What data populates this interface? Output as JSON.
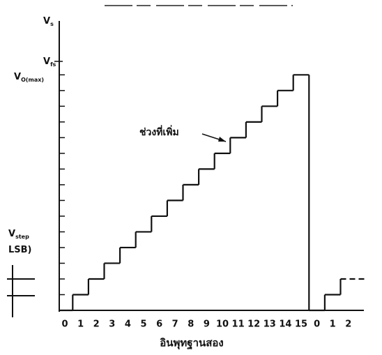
{
  "chart_data": {
    "type": "step",
    "x_label": "อินพุทฐานสอง",
    "annotation": "ช่วงที่เพิ่ม",
    "y_labels": [
      {
        "main": "V",
        "sub": "s"
      },
      {
        "main": "V",
        "sub": "fs"
      },
      {
        "main": "V",
        "sub": "O(max)"
      },
      {
        "main": "V",
        "sub": "step"
      },
      {
        "main": "LSB)",
        "sub": ""
      }
    ],
    "categories": [
      "0",
      "1",
      "2",
      "3",
      "4",
      "5",
      "6",
      "7",
      "8",
      "9",
      "10",
      "11",
      "12",
      "13",
      "14",
      "15",
      "0",
      "1",
      "2"
    ],
    "values": [
      0,
      1,
      2,
      3,
      4,
      5,
      6,
      7,
      8,
      9,
      10,
      11,
      12,
      13,
      14,
      15,
      0,
      1,
      2
    ],
    "ylim": [
      0,
      19.1
    ],
    "color": "#111111"
  }
}
